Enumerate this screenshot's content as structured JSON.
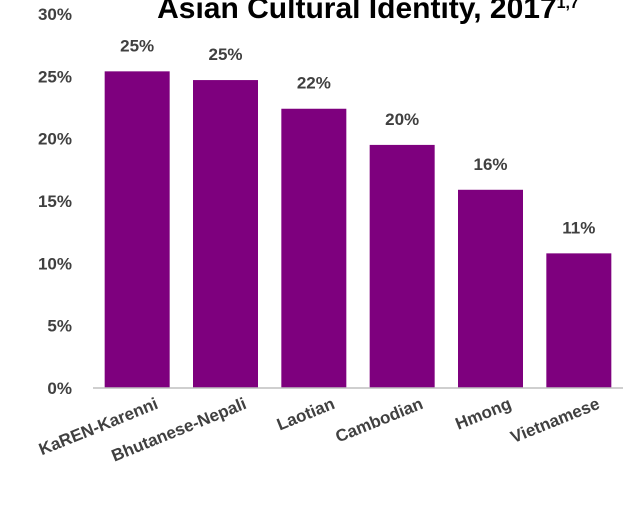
{
  "chart_data": {
    "type": "bar",
    "title": "Asian Cultural Identity, 2017",
    "title_superscript": "1,7",
    "categories": [
      "KaREN-Karenni",
      "Bhutanese-Nepali",
      "Laotian",
      "Cambodian",
      "Hmong",
      "Vietnamese"
    ],
    "values": [
      25.4,
      24.7,
      22.4,
      19.5,
      15.9,
      10.8
    ],
    "data_labels": [
      "25%",
      "25%",
      "22%",
      "20%",
      "16%",
      "11%"
    ],
    "y_ticks": [
      "0%",
      "5%",
      "10%",
      "15%",
      "20%",
      "25%",
      "30%"
    ],
    "ylim": [
      0,
      30
    ],
    "xlabel": "",
    "ylabel": "",
    "grid": false,
    "legend": "none",
    "colors": {
      "bar": "#7E007E",
      "axis_line": "#BFBFBF",
      "text": "#404040",
      "title": "#000000"
    }
  }
}
